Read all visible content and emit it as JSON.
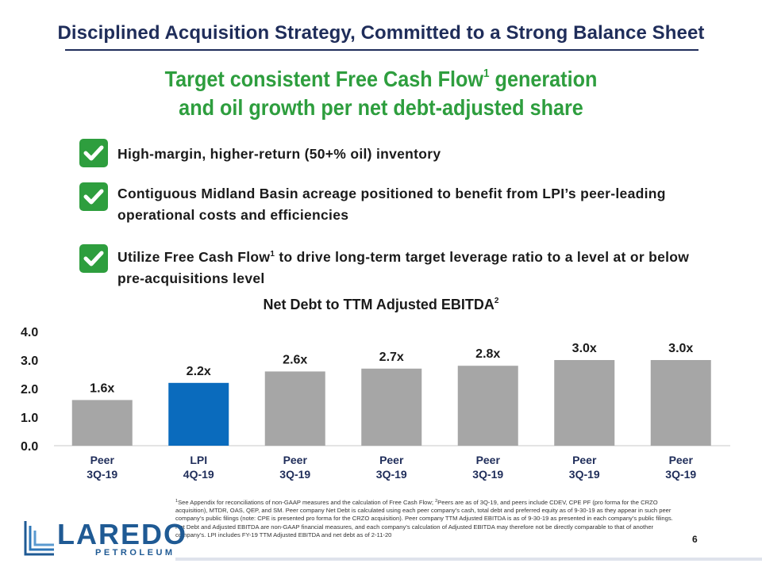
{
  "slide": {
    "title": "Disciplined Acquisition Strategy, Committed to a Strong Balance Sheet",
    "headline_line1": "Target consistent Free Cash Flow",
    "headline_line1_sup": "1",
    "headline_line1_end": " generation",
    "headline_line2": "and oil growth per net debt-adjusted share",
    "page_number": "6"
  },
  "bullets": [
    {
      "text": "High-margin, higher-return (50+% oil) inventory"
    },
    {
      "text": "Contiguous Midland Basin acreage positioned to benefit from LPI’s peer-leading operational costs and efficiencies"
    },
    {
      "text_a": "Utilize Free Cash Flow",
      "sup": "1",
      "text_b": " to drive long-term target leverage ratio to a level at or below pre-acquisitions level"
    }
  ],
  "chart_data": {
    "type": "bar",
    "title": "Net Debt to TTM Adjusted EBITDA",
    "title_sup": "2",
    "categories": [
      [
        "Peer",
        "3Q-19"
      ],
      [
        "LPI",
        "4Q-19"
      ],
      [
        "Peer",
        "3Q-19"
      ],
      [
        "Peer",
        "3Q-19"
      ],
      [
        "Peer",
        "3Q-19"
      ],
      [
        "Peer",
        "3Q-19"
      ],
      [
        "Peer",
        "3Q-19"
      ]
    ],
    "values": [
      1.6,
      2.2,
      2.6,
      2.7,
      2.8,
      3.0,
      3.0
    ],
    "data_labels": [
      "1.6x",
      "2.2x",
      "2.6x",
      "2.7x",
      "2.8x",
      "3.0x",
      "3.0x"
    ],
    "highlight_index": 1,
    "yticks": [
      "0.0",
      "1.0",
      "2.0",
      "3.0",
      "4.0"
    ],
    "ylim": [
      0,
      4
    ],
    "colors": {
      "peer": "#a6a6a6",
      "highlight": "#0a6bbd"
    }
  },
  "footnote": {
    "sup1": "1",
    "text1": "See Appendix for reconciliations of non-GAAP measures and the calculation of Free Cash Flow; ",
    "sup2": "2",
    "text2": "Peers are as of 3Q-19, and peers include CDEV, CPE PF (pro forma for the CRZO acquisition), MTDR, OAS, QEP, and SM. Peer company Net Debt is calculated using each peer company’s cash, total debt and preferred equity as of 9-30-19 as they appear in such peer company’s public filings (note: CPE is presented pro forma for the CRZO acquisition). Peer company TTM Adjusted EBITDA is as of 9-30-19 as presented in each company’s public filings. Net Debt and Adjusted EBITDA are non-GAAP financial measures, and each company’s calculation of Adjusted EBITDA may therefore not be directly comparable to that of another company’s. LPI includes FY-19 TTM Adjusted EBITDA and net debt as of 2-11-20"
  },
  "logo": {
    "word": "LAREDO",
    "sub": "PETROLEUM"
  }
}
